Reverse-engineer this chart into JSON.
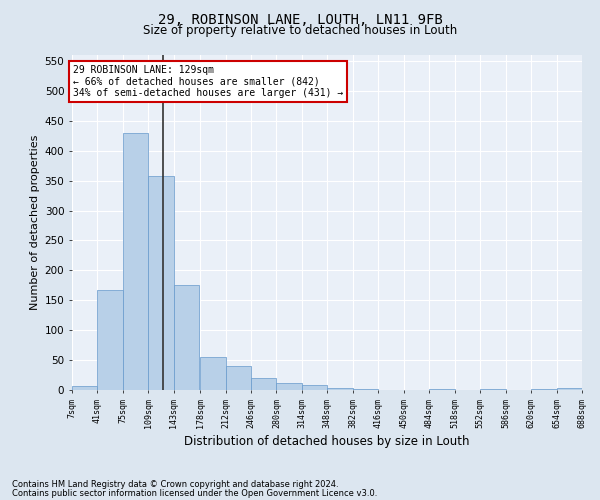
{
  "title": "29, ROBINSON LANE, LOUTH, LN11 9FB",
  "subtitle": "Size of property relative to detached houses in Louth",
  "xlabel": "Distribution of detached houses by size in Louth",
  "ylabel": "Number of detached properties",
  "footnote1": "Contains HM Land Registry data © Crown copyright and database right 2024.",
  "footnote2": "Contains public sector information licensed under the Open Government Licence v3.0.",
  "bar_color": "#b8d0e8",
  "bar_edge_color": "#6699cc",
  "bg_color": "#dce6f0",
  "plot_bg_color": "#eaf0f8",
  "grid_color": "#ffffff",
  "vline_color": "#333333",
  "annotation_text": "29 ROBINSON LANE: 129sqm\n← 66% of detached houses are smaller (842)\n34% of semi-detached houses are larger (431) →",
  "annotation_box_color": "#ffffff",
  "annotation_box_edge": "#cc0000",
  "property_size": 129,
  "bin_edges": [
    7,
    41,
    75,
    109,
    143,
    178,
    212,
    246,
    280,
    314,
    348,
    382,
    416,
    450,
    484,
    518,
    552,
    586,
    620,
    654,
    688
  ],
  "bin_heights": [
    7,
    168,
    430,
    357,
    175,
    56,
    40,
    20,
    11,
    8,
    4,
    1,
    0,
    0,
    1,
    0,
    2,
    0,
    1,
    3
  ],
  "ylim": [
    0,
    560
  ],
  "yticks": [
    0,
    50,
    100,
    150,
    200,
    250,
    300,
    350,
    400,
    450,
    500,
    550
  ]
}
